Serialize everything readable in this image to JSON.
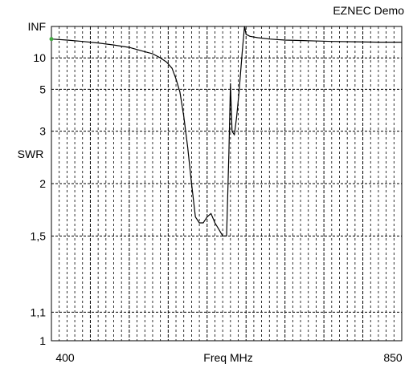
{
  "chart_data": {
    "type": "line",
    "title": "EZNEC Demo",
    "xlabel": "Freq MHz",
    "ylabel": "SWR",
    "x_tick_labels": [
      "400",
      "850"
    ],
    "y_tick_labels": [
      "INF",
      "10",
      "5",
      "3",
      "2",
      "1,5",
      "1,1",
      "1"
    ],
    "xlim": [
      400,
      850
    ],
    "ylim": [
      1,
      "INF"
    ],
    "y_scale": "reflection (1/SWR)",
    "grid": true,
    "grid_style": "dashed",
    "x_minor_step": 10,
    "x_major_step": 50,
    "y_gridlines": [
      10,
      5,
      3,
      2,
      1.5,
      1.1
    ],
    "colors": {
      "line": "#000000",
      "grid": "#000000",
      "marker": "#44aa44"
    },
    "marker_point": {
      "x": 400,
      "y": 25
    },
    "series": [
      {
        "x": [
          400,
          420,
          440,
          460,
          480,
          500,
          515,
          530,
          540,
          548,
          555,
          560,
          565,
          570,
          575,
          580,
          585,
          590,
          595,
          600,
          605,
          610,
          615,
          620,
          625,
          628,
          630,
          632,
          635,
          638,
          641,
          645,
          648,
          650,
          655,
          665,
          680,
          700,
          730,
          760,
          790,
          820,
          850
        ],
        "y": [
          25,
          23,
          21,
          19,
          17,
          15,
          13,
          11.5,
          10,
          8.8,
          7.5,
          6,
          4.8,
          3.5,
          2.6,
          2,
          1.65,
          1.6,
          1.6,
          1.65,
          1.68,
          1.6,
          1.55,
          1.5,
          1.5,
          2.5,
          5.5,
          3,
          2.9,
          3.5,
          4.8,
          12,
          "INF",
          40,
          32,
          28,
          25,
          23,
          22,
          21,
          20.5,
          20,
          20
        ]
      }
    ]
  }
}
